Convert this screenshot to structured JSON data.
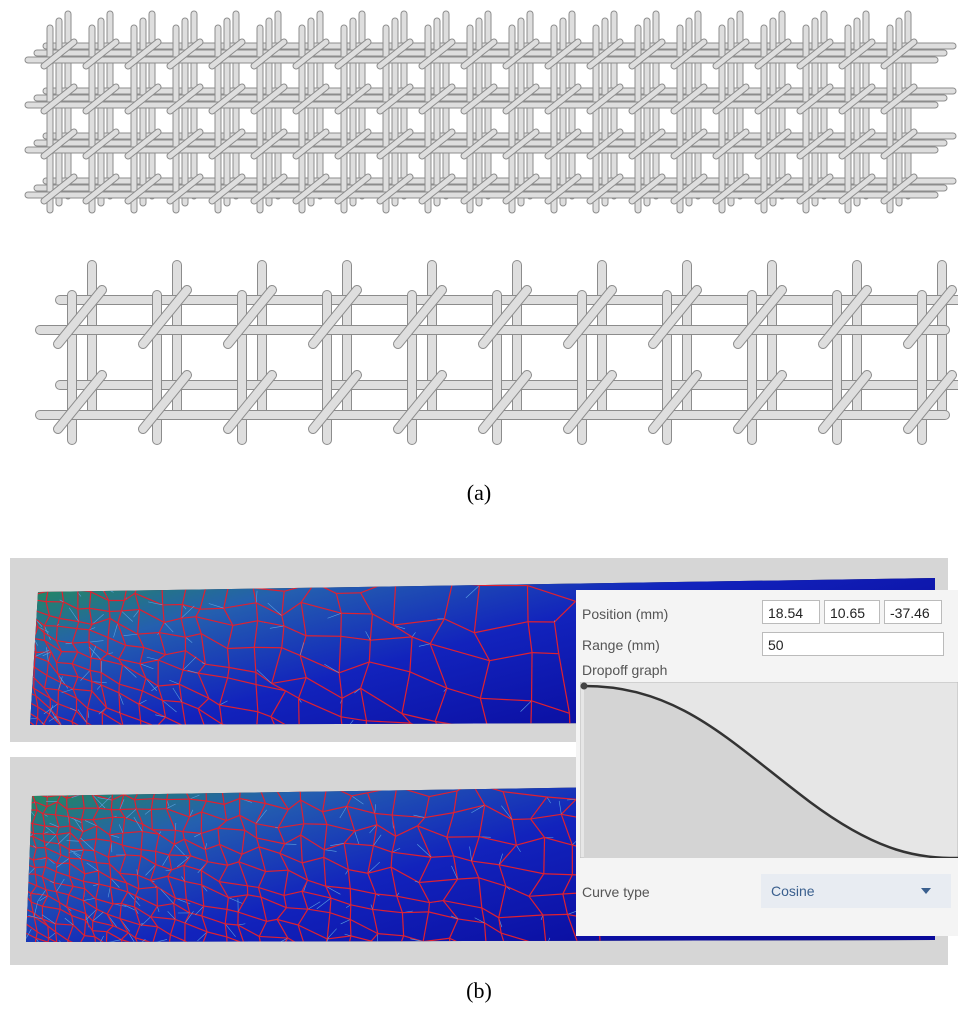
{
  "panels": {
    "a": {
      "label": "(a)"
    },
    "b": {
      "label": "(b)",
      "settings": {
        "position_label": "Position (mm)",
        "position": [
          18.54,
          10.65,
          -37.46
        ],
        "range_label": "Range (mm)",
        "range": 50,
        "dropoff_label": "Dropoff graph",
        "curve_type_label": "Curve type",
        "curve_type": "Cosine"
      }
    }
  }
}
